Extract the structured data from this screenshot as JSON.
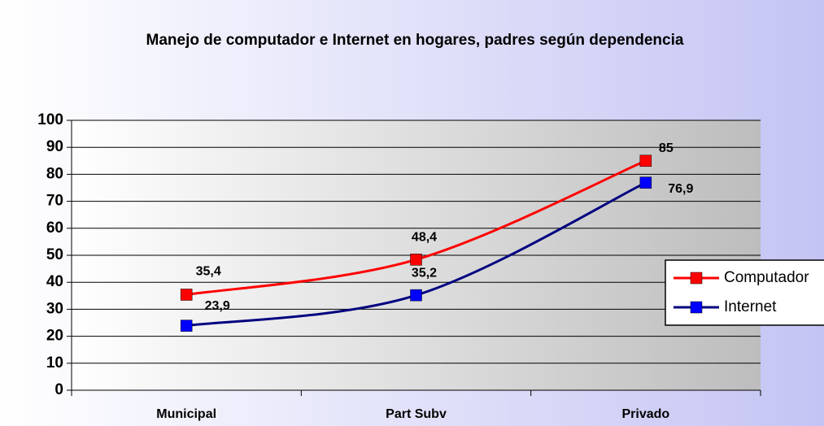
{
  "chart_data": {
    "type": "line",
    "title": "Manejo de computador e Internet en hogares, padres según dependencia",
    "categories": [
      "Municipal",
      "Part Subv",
      "Privado"
    ],
    "series": [
      {
        "name": "Computador",
        "color": "#ff0000",
        "values": [
          35.4,
          48.4,
          85
        ],
        "value_labels": [
          "35,4",
          "48,4",
          "85"
        ]
      },
      {
        "name": "Internet",
        "color": "#000080",
        "marker_color": "#0000ff",
        "values": [
          23.9,
          35.2,
          76.9
        ],
        "value_labels": [
          "23,9",
          "35,2",
          "76,9"
        ]
      }
    ],
    "ylim": [
      0,
      100
    ],
    "yticks": [
      0,
      10,
      20,
      30,
      40,
      50,
      60,
      70,
      80,
      90,
      100
    ],
    "grid": true,
    "legend": "right",
    "smooth": true
  }
}
